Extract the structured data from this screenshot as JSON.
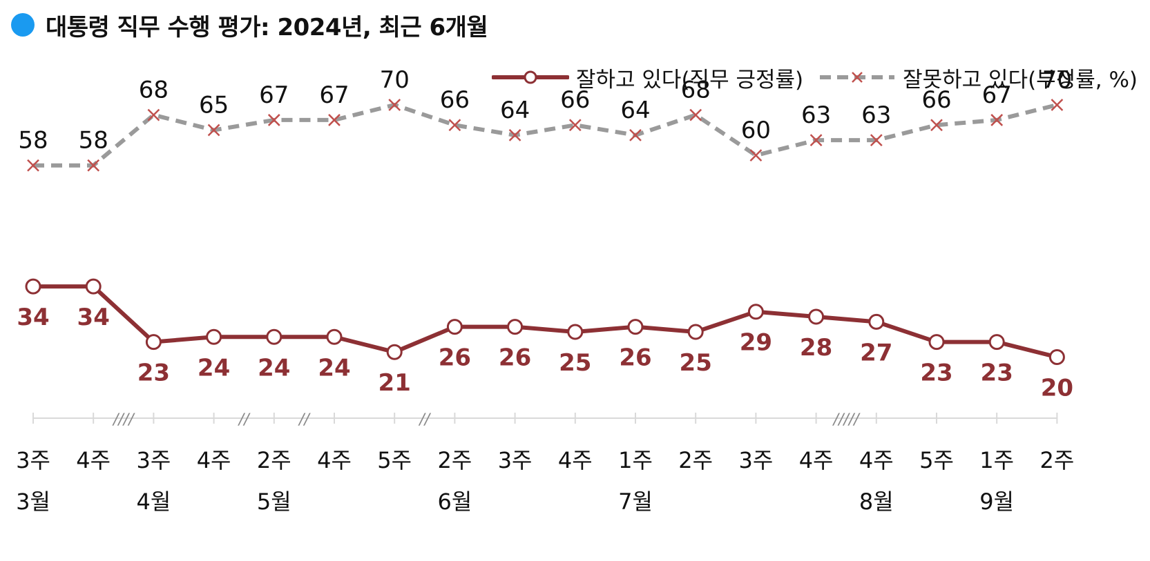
{
  "title": {
    "text": "대통령 직무 수행 평가: 2024년, 최근 6개월",
    "dot_color": "#1a9af0"
  },
  "colors": {
    "approve": "#8d3034",
    "disapprove": "#9a9a9a",
    "disapprove_marker": "#c0504d",
    "axis": "#d9d9d9",
    "break": "#8a8a8a"
  },
  "legend": {
    "approve_label": "잘하고 있다(직무 긍정률)",
    "disapprove_label": "잘못하고 있다(부정률, %)"
  },
  "chart_data": {
    "type": "line",
    "categories": [
      {
        "week": "3주",
        "month": "3월"
      },
      {
        "week": "4주",
        "month": ""
      },
      {
        "week": "3주",
        "month": "4월"
      },
      {
        "week": "4주",
        "month": ""
      },
      {
        "week": "2주",
        "month": "5월"
      },
      {
        "week": "4주",
        "month": ""
      },
      {
        "week": "5주",
        "month": ""
      },
      {
        "week": "2주",
        "month": "6월"
      },
      {
        "week": "3주",
        "month": ""
      },
      {
        "week": "4주",
        "month": ""
      },
      {
        "week": "1주",
        "month": "7월"
      },
      {
        "week": "2주",
        "month": ""
      },
      {
        "week": "3주",
        "month": ""
      },
      {
        "week": "4주",
        "month": ""
      },
      {
        "week": "4주",
        "month": "8월"
      },
      {
        "week": "5주",
        "month": ""
      },
      {
        "week": "1주",
        "month": "9월"
      },
      {
        "week": "2주",
        "month": ""
      }
    ],
    "series": [
      {
        "key": "approve",
        "name": "잘하고 있다(직무 긍정률)",
        "marker": "circle",
        "values": [
          34,
          34,
          23,
          24,
          24,
          24,
          21,
          26,
          26,
          25,
          26,
          25,
          29,
          28,
          27,
          23,
          23,
          20
        ]
      },
      {
        "key": "disapprove",
        "name": "잘못하고 있다(부정률, %)",
        "marker": "cross",
        "values": [
          58,
          58,
          68,
          65,
          67,
          67,
          70,
          66,
          64,
          66,
          64,
          68,
          60,
          63,
          63,
          66,
          67,
          70
        ]
      }
    ],
    "gap_marks": [
      {
        "after_index": 1,
        "label": "////"
      },
      {
        "after_index": 3,
        "label": "//"
      },
      {
        "after_index": 4,
        "label": "//"
      },
      {
        "after_index": 6,
        "label": "//"
      },
      {
        "after_index": 13,
        "label": "/////"
      }
    ],
    "grid": false,
    "legend_position": "top-right"
  }
}
